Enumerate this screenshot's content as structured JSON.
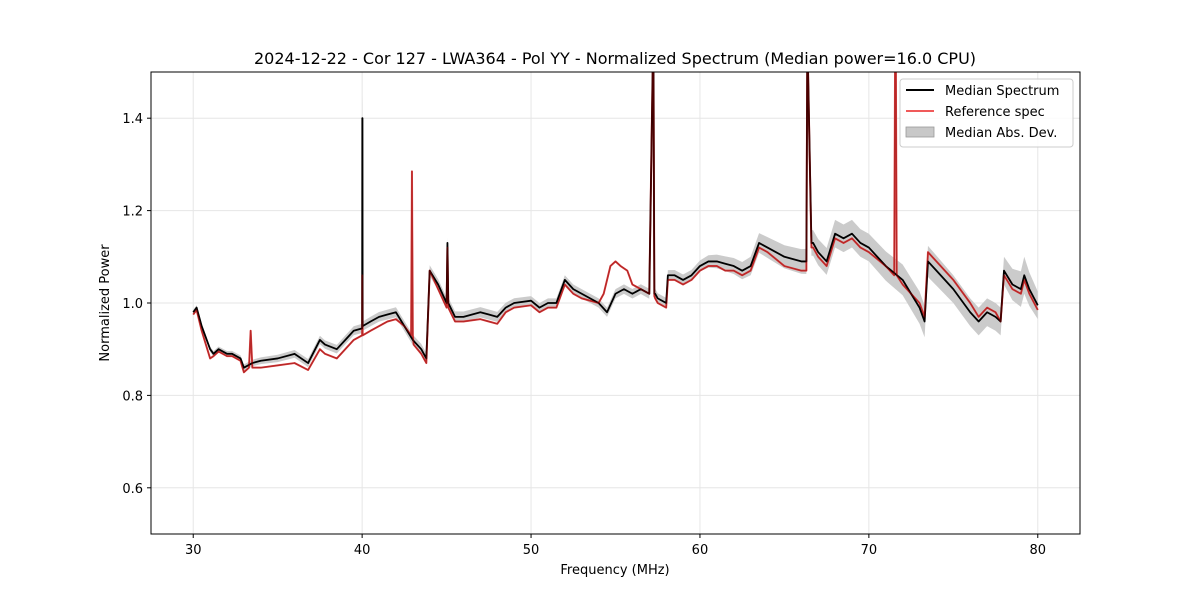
{
  "chart_data": {
    "type": "line",
    "title": "2024-12-22 - Cor 127 - LWA364 - Pol YY - Normalized Spectrum (Median power=16.0 CPU)",
    "xlabel": "Frequency (MHz)",
    "ylabel": "Normalized Power",
    "xlim": [
      27.5,
      82.5
    ],
    "ylim": [
      0.5,
      1.5
    ],
    "xticks": [
      30,
      40,
      50,
      60,
      70,
      80
    ],
    "yticks": [
      0.6,
      0.8,
      1.0,
      1.2,
      1.4
    ],
    "xtick_labels": [
      "30",
      "40",
      "50",
      "60",
      "70",
      "80"
    ],
    "ytick_labels": [
      "0.6",
      "0.8",
      "1.0",
      "1.2",
      "1.4"
    ],
    "grid": true,
    "legend_position": "top-right",
    "legend": [
      "Median Spectrum",
      "Reference spec",
      "Median Abs. Dev."
    ],
    "colors": {
      "median": "#000000",
      "reference": "#f05a5a",
      "mad": "#c8c8c8",
      "overlap": "#8b0000"
    },
    "series": [
      {
        "name": "Median Spectrum",
        "x": [
          30.0,
          30.2,
          30.5,
          31.0,
          31.2,
          31.5,
          32.0,
          32.3,
          32.8,
          33.0,
          33.5,
          34.0,
          35.0,
          36.0,
          36.8,
          37.5,
          37.8,
          38.5,
          39.0,
          39.5,
          40.0,
          40.01,
          40.02,
          40.03,
          40.5,
          41.0,
          41.5,
          42.0,
          42.5,
          43.0,
          43.5,
          43.8,
          44.0,
          44.5,
          45.0,
          45.05,
          45.1,
          45.5,
          46.0,
          47.0,
          47.5,
          48.0,
          48.5,
          49.0,
          50.0,
          50.5,
          51.0,
          51.5,
          52.0,
          52.5,
          53.0,
          54.0,
          54.5,
          55.0,
          55.5,
          56.0,
          56.5,
          57.0,
          57.2,
          57.25,
          57.3,
          57.35,
          57.5,
          58.0,
          58.1,
          58.5,
          59.0,
          59.5,
          60.0,
          60.5,
          61.0,
          61.5,
          62.0,
          62.5,
          63.0,
          63.5,
          64.0,
          65.0,
          66.0,
          66.3,
          66.35,
          66.4,
          66.6,
          66.7,
          67.0,
          67.5,
          68.0,
          68.5,
          69.0,
          69.5,
          70.0,
          71.0,
          72.0,
          73.0,
          73.3,
          73.5,
          74.0,
          75.0,
          76.0,
          76.5,
          77.0,
          77.5,
          77.8,
          78.0,
          78.5,
          79.0,
          79.2,
          79.5,
          80.0
        ],
        "values": [
          0.98,
          0.99,
          0.95,
          0.9,
          0.89,
          0.9,
          0.89,
          0.89,
          0.88,
          0.86,
          0.87,
          0.875,
          0.88,
          0.89,
          0.87,
          0.92,
          0.91,
          0.9,
          0.92,
          0.94,
          0.945,
          1.4,
          1.4,
          0.95,
          0.96,
          0.97,
          0.975,
          0.98,
          0.95,
          0.92,
          0.9,
          0.88,
          1.07,
          1.04,
          1.0,
          1.13,
          1.0,
          0.97,
          0.97,
          0.98,
          0.975,
          0.97,
          0.99,
          1.0,
          1.005,
          0.99,
          1.0,
          1.0,
          1.05,
          1.03,
          1.02,
          1.0,
          0.98,
          1.02,
          1.03,
          1.02,
          1.03,
          1.02,
          1.5,
          1.5,
          1.02,
          1.02,
          1.01,
          1.0,
          1.06,
          1.06,
          1.05,
          1.06,
          1.08,
          1.09,
          1.09,
          1.085,
          1.08,
          1.07,
          1.08,
          1.13,
          1.12,
          1.1,
          1.09,
          1.09,
          1.5,
          1.5,
          1.13,
          1.13,
          1.11,
          1.09,
          1.15,
          1.14,
          1.15,
          1.13,
          1.12,
          1.08,
          1.05,
          0.99,
          0.96,
          1.09,
          1.07,
          1.03,
          0.98,
          0.96,
          0.98,
          0.97,
          0.96,
          1.07,
          1.04,
          1.03,
          1.06,
          1.03,
          0.995
        ]
      },
      {
        "name": "Reference spec",
        "x": [
          30.0,
          30.2,
          30.5,
          31.0,
          31.2,
          31.5,
          32.0,
          32.3,
          32.8,
          33.0,
          33.3,
          33.4,
          33.5,
          34.0,
          35.0,
          36.0,
          36.8,
          37.5,
          37.8,
          38.5,
          39.0,
          39.5,
          40.0,
          40.01,
          40.02,
          40.03,
          40.5,
          41.0,
          41.5,
          42.0,
          42.5,
          42.9,
          42.95,
          43.0,
          43.05,
          43.5,
          43.8,
          44.0,
          44.5,
          45.0,
          45.05,
          45.1,
          45.5,
          46.0,
          47.0,
          47.5,
          48.0,
          48.5,
          49.0,
          50.0,
          50.5,
          51.0,
          51.5,
          52.0,
          52.5,
          53.0,
          54.0,
          54.3,
          54.7,
          55.0,
          55.3,
          55.7,
          56.0,
          56.5,
          57.0,
          57.2,
          57.25,
          57.3,
          57.35,
          57.5,
          58.0,
          58.1,
          58.5,
          59.0,
          59.5,
          60.0,
          60.5,
          61.0,
          61.5,
          62.0,
          62.5,
          63.0,
          63.5,
          64.0,
          65.0,
          66.0,
          66.3,
          66.35,
          66.4,
          66.6,
          66.7,
          67.0,
          67.5,
          68.0,
          68.5,
          69.0,
          69.5,
          70.0,
          71.0,
          71.5,
          71.55,
          71.6,
          71.65,
          72.0,
          73.0,
          73.3,
          73.5,
          74.0,
          75.0,
          76.0,
          76.5,
          77.0,
          77.5,
          77.8,
          78.0,
          78.5,
          79.0,
          79.2,
          79.5,
          80.0
        ],
        "values": [
          0.975,
          0.985,
          0.94,
          0.88,
          0.885,
          0.895,
          0.885,
          0.885,
          0.875,
          0.85,
          0.86,
          0.94,
          0.86,
          0.86,
          0.865,
          0.87,
          0.855,
          0.9,
          0.89,
          0.88,
          0.9,
          0.92,
          0.93,
          1.06,
          1.06,
          0.93,
          0.94,
          0.95,
          0.96,
          0.965,
          0.95,
          0.93,
          1.285,
          0.93,
          0.91,
          0.89,
          0.87,
          1.07,
          1.03,
          0.99,
          1.12,
          0.99,
          0.96,
          0.96,
          0.965,
          0.96,
          0.955,
          0.98,
          0.99,
          0.995,
          0.98,
          0.99,
          0.99,
          1.04,
          1.02,
          1.01,
          1.0,
          1.02,
          1.08,
          1.09,
          1.08,
          1.07,
          1.04,
          1.03,
          1.02,
          1.5,
          1.5,
          1.015,
          1.01,
          1.0,
          0.99,
          1.05,
          1.05,
          1.04,
          1.05,
          1.07,
          1.08,
          1.08,
          1.07,
          1.07,
          1.06,
          1.07,
          1.12,
          1.11,
          1.08,
          1.07,
          1.07,
          1.5,
          1.5,
          1.12,
          1.12,
          1.1,
          1.08,
          1.14,
          1.13,
          1.14,
          1.12,
          1.11,
          1.08,
          1.06,
          1.5,
          1.5,
          1.06,
          1.04,
          1.0,
          0.97,
          1.11,
          1.09,
          1.05,
          1.0,
          0.97,
          0.99,
          0.98,
          0.96,
          1.06,
          1.03,
          1.02,
          1.05,
          1.02,
          0.985
        ]
      },
      {
        "name": "Median Abs. Dev.",
        "x": [
          30.0,
          35.0,
          40.0,
          40.01,
          40.03,
          45.0,
          50.0,
          55.0,
          60.0,
          63.0,
          65.0,
          68.0,
          70.0,
          73.0,
          75.0,
          78.0,
          79.2,
          80.0
        ],
        "values": [
          0.005,
          0.008,
          0.01,
          0.05,
          0.01,
          0.012,
          0.01,
          0.01,
          0.012,
          0.02,
          0.025,
          0.03,
          0.03,
          0.035,
          0.03,
          0.03,
          0.04,
          0.03
        ]
      }
    ]
  }
}
